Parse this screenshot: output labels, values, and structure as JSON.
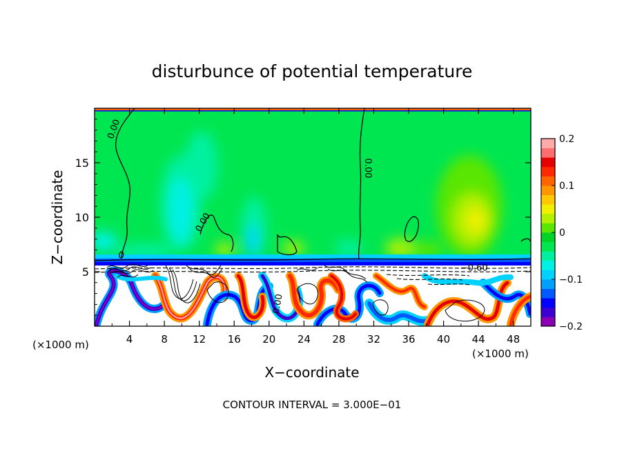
{
  "chart_data": {
    "type": "heatmap",
    "title": "disturbunce of potential temperature",
    "xlabel": "X−coordinate",
    "ylabel": "Z−coordinate",
    "x_unit_left": "(×1000 m)",
    "x_unit_right": "(×1000 m)",
    "xlim": [
      0,
      50
    ],
    "ylim": [
      0,
      20
    ],
    "x_ticks": [
      4,
      8,
      12,
      16,
      20,
      24,
      28,
      32,
      36,
      40,
      44,
      48
    ],
    "y_ticks": [
      5,
      10,
      15
    ],
    "colorbar": {
      "range": [
        -0.2,
        0.2
      ],
      "tick_values": [
        0.2,
        0.1,
        0,
        -0.1,
        -0.2
      ],
      "tick_labels": [
        "0.2",
        "0.1",
        "0",
        "−0.1",
        "−0.2"
      ],
      "colors": [
        "#8c00b4",
        "#3c00d2",
        "#0000ff",
        "#005aff",
        "#00a0ff",
        "#00d2ff",
        "#00f0e6",
        "#00f0a0",
        "#00e650",
        "#00d228",
        "#5ae600",
        "#b4f000",
        "#f0f000",
        "#ffc800",
        "#ff9600",
        "#ff6400",
        "#ff2800",
        "#e60000",
        "#ff6e6e",
        "#ffaaaa"
      ]
    },
    "contour_labels": [
      {
        "text": "0.00",
        "x": 2.5,
        "z": 18.0,
        "rotate": -70
      },
      {
        "text": "0.00",
        "x": 31.0,
        "z": 14.5,
        "rotate": 90
      },
      {
        "text": "0.00",
        "x": 12.7,
        "z": 9.4,
        "rotate": -60
      },
      {
        "text": "0.00",
        "x": 21.3,
        "z": 2.0,
        "rotate": -80
      },
      {
        "text": "−0.60",
        "x": 43.5,
        "z": 5.1,
        "rotate": 0
      }
    ],
    "contour_interval_text": "CONTOUR INTERVAL = 3.000E−01"
  }
}
